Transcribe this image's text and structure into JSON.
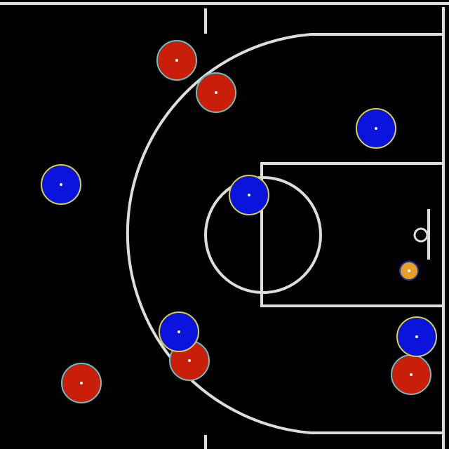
{
  "court": {
    "background_color": "#000000",
    "line_color": "#dddddd"
  },
  "team_colors": {
    "red_fill": "#c81e0a",
    "red_outline": "#5fc3c8",
    "blue_fill": "#0a14dc",
    "blue_outline": "#dcd23c",
    "ball_fill": "#e6a028",
    "ball_outline": "#1e3ca0",
    "center_dot": "#ffffff"
  },
  "players": [
    {
      "team": "red"
    },
    {
      "team": "red"
    },
    {
      "team": "red"
    },
    {
      "team": "red"
    },
    {
      "team": "red"
    },
    {
      "team": "blue"
    },
    {
      "team": "blue"
    },
    {
      "team": "blue"
    },
    {
      "team": "blue"
    },
    {
      "team": "blue"
    }
  ],
  "ball": {
    "color": "orange"
  }
}
